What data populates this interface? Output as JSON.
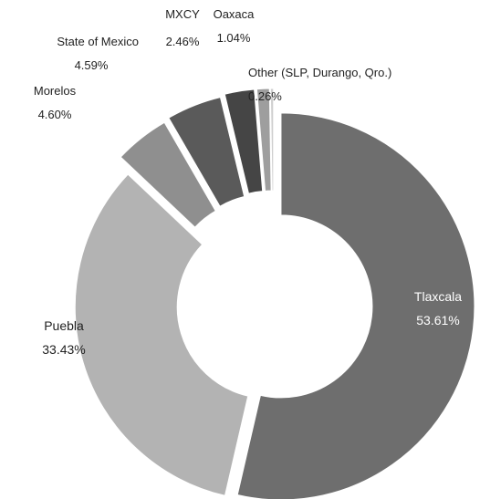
{
  "chart_data": {
    "type": "donut",
    "categories": [
      "Tlaxcala",
      "Puebla",
      "Morelos",
      "State of Mexico",
      "MXCY",
      "Oaxaca",
      "Other (SLP, Durango, Qro.)"
    ],
    "values": [
      53.61,
      33.43,
      4.6,
      4.59,
      2.46,
      1.04,
      0.26
    ],
    "value_labels": [
      "53.61%",
      "33.43%",
      "4.60%",
      "4.59%",
      "2.46%",
      "1.04%",
      "0.26%"
    ],
    "colors": [
      "#6e6e6e",
      "#b3b3b3",
      "#8f8f8f",
      "#5a5a5a",
      "#454545",
      "#9e9e9e",
      "#cfcfcf"
    ]
  }
}
